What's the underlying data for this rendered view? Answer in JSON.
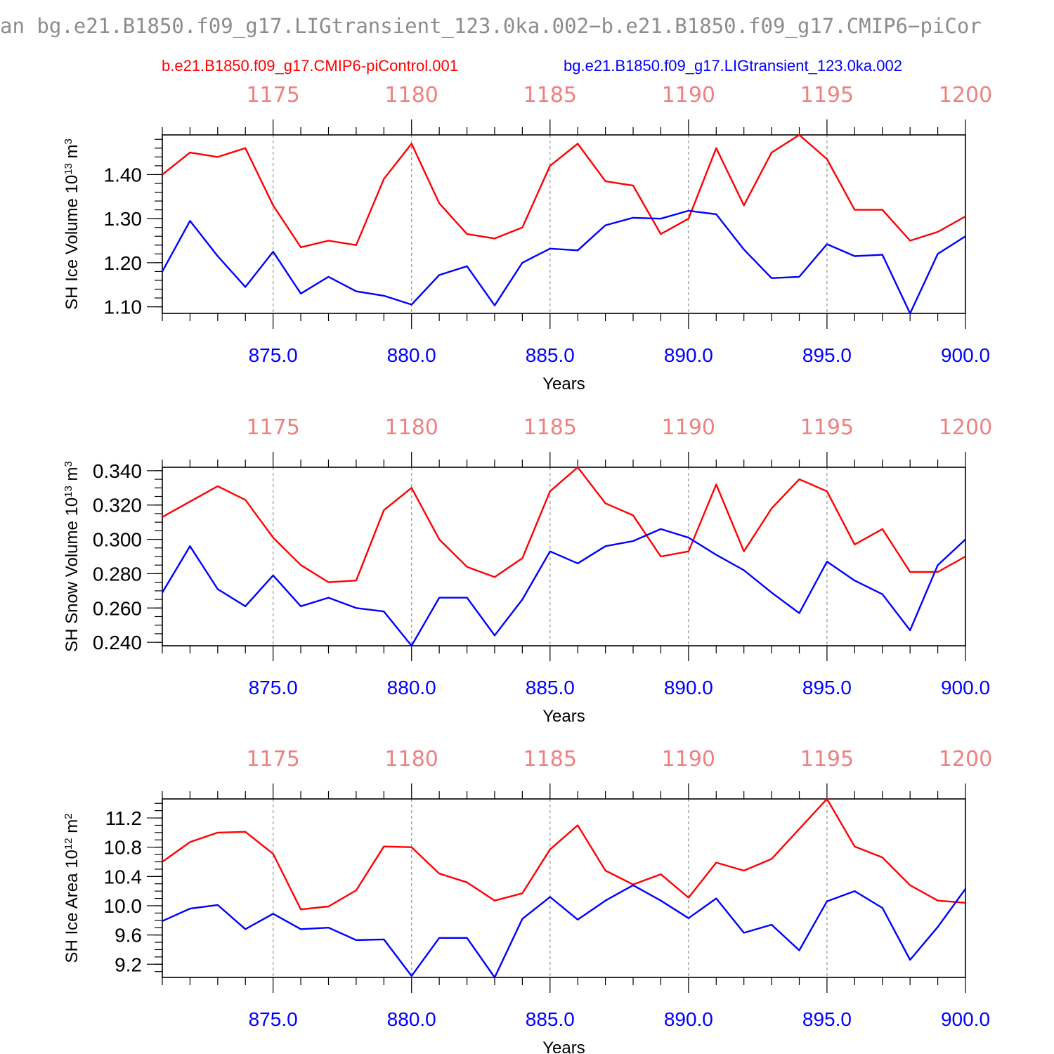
{
  "title": "an bg.e21.B1850.f09_g17.LIGtransient_123.0ka.002−b.e21.B1850.f09_g17.CMIP6−piCor",
  "legend": [
    {
      "label": "b.e21.B1850.f09_g17.CMIP6-piControl.001",
      "color": "#ff0000"
    },
    {
      "label": "bg.e21.B1850.f09_g17.LIGtransient_123.0ka.002",
      "color": "#0000ff"
    }
  ],
  "colors": {
    "control": "#ff0000",
    "transient": "#0000ff",
    "top_axis": "#f08080",
    "bottom_axis": "#0000ff"
  },
  "chart_data": [
    {
      "type": "line",
      "ylabel": {
        "main": "SH Ice Volume 10",
        "exp": "13",
        "unit": " m",
        "unit_exp": "3"
      },
      "xlabel": "Years",
      "xlim": [
        871,
        900
      ],
      "ylim": [
        1.085,
        1.49
      ],
      "yticks": [
        1.1,
        1.2,
        1.3,
        1.4
      ],
      "ytick_labels": [
        "1.10",
        "1.20",
        "1.30",
        "1.40"
      ],
      "yminor": 0.02,
      "xticks": [
        875,
        880,
        885,
        890,
        895,
        900
      ],
      "xtick_labels": [
        "875.0",
        "880.0",
        "885.0",
        "890.0",
        "895.0",
        "900.0"
      ],
      "top_xtick_labels": [
        "1175",
        "1180",
        "1185",
        "1190",
        "1195",
        "1200"
      ],
      "grid": "vertical dashed at major x ticks",
      "x": [
        871,
        872,
        873,
        874,
        875,
        876,
        877,
        878,
        879,
        880,
        881,
        882,
        883,
        884,
        885,
        886,
        887,
        888,
        889,
        890,
        891,
        892,
        893,
        894,
        895,
        896,
        897,
        898,
        899,
        900
      ],
      "series": [
        {
          "name": "b.e21.B1850.f09_g17.CMIP6-piControl.001",
          "color": "#ff0000",
          "values": [
            1.4,
            1.45,
            1.44,
            1.46,
            1.33,
            1.235,
            1.25,
            1.24,
            1.39,
            1.47,
            1.335,
            1.265,
            1.255,
            1.28,
            1.42,
            1.47,
            1.385,
            1.375,
            1.265,
            1.3,
            1.46,
            1.33,
            1.45,
            1.49,
            1.435,
            1.32,
            1.32,
            1.25,
            1.27,
            1.305
          ]
        },
        {
          "name": "bg.e21.B1850.f09_g17.LIGtransient_123.0ka.002",
          "color": "#0000ff",
          "values": [
            1.18,
            1.295,
            1.215,
            1.145,
            1.225,
            1.13,
            1.168,
            1.135,
            1.125,
            1.105,
            1.172,
            1.192,
            1.103,
            1.2,
            1.232,
            1.228,
            1.285,
            1.302,
            1.3,
            1.318,
            1.31,
            1.23,
            1.165,
            1.168,
            1.242,
            1.215,
            1.218,
            1.085,
            1.22,
            1.26
          ]
        }
      ]
    },
    {
      "type": "line",
      "ylabel": {
        "main": "SH Snow Volume 10",
        "exp": "13",
        "unit": " m",
        "unit_exp": "3"
      },
      "xlabel": "Years",
      "xlim": [
        871,
        900
      ],
      "ylim": [
        0.238,
        0.342
      ],
      "yticks": [
        0.24,
        0.26,
        0.28,
        0.3,
        0.32,
        0.34
      ],
      "ytick_labels": [
        "0.240",
        "0.260",
        "0.280",
        "0.300",
        "0.320",
        "0.340"
      ],
      "yminor": 0.005,
      "xticks": [
        875,
        880,
        885,
        890,
        895,
        900
      ],
      "xtick_labels": [
        "875.0",
        "880.0",
        "885.0",
        "890.0",
        "895.0",
        "900.0"
      ],
      "top_xtick_labels": [
        "1175",
        "1180",
        "1185",
        "1190",
        "1195",
        "1200"
      ],
      "grid": "vertical dashed at major x ticks",
      "x": [
        871,
        872,
        873,
        874,
        875,
        876,
        877,
        878,
        879,
        880,
        881,
        882,
        883,
        884,
        885,
        886,
        887,
        888,
        889,
        890,
        891,
        892,
        893,
        894,
        895,
        896,
        897,
        898,
        899,
        900
      ],
      "series": [
        {
          "name": "b.e21.B1850.f09_g17.CMIP6-piControl.001",
          "color": "#ff0000",
          "values": [
            0.313,
            0.322,
            0.331,
            0.323,
            0.301,
            0.285,
            0.275,
            0.276,
            0.317,
            0.33,
            0.3,
            0.284,
            0.278,
            0.289,
            0.328,
            0.342,
            0.321,
            0.314,
            0.29,
            0.293,
            0.332,
            0.293,
            0.318,
            0.335,
            0.328,
            0.297,
            0.306,
            0.281,
            0.281,
            0.29
          ]
        },
        {
          "name": "bg.e21.B1850.f09_g17.LIGtransient_123.0ka.002",
          "color": "#0000ff",
          "values": [
            0.269,
            0.296,
            0.271,
            0.261,
            0.279,
            0.261,
            0.266,
            0.26,
            0.258,
            0.238,
            0.266,
            0.266,
            0.244,
            0.265,
            0.293,
            0.286,
            0.296,
            0.299,
            0.306,
            0.301,
            0.291,
            0.282,
            0.269,
            0.257,
            0.287,
            0.276,
            0.268,
            0.247,
            0.285,
            0.3
          ]
        }
      ]
    },
    {
      "type": "line",
      "ylabel": {
        "main": "SH Ice Area 10",
        "exp": "12",
        "unit": " m",
        "unit_exp": "2"
      },
      "xlabel": "Years",
      "xlim": [
        871,
        900
      ],
      "ylim": [
        9.02,
        11.46
      ],
      "yticks": [
        9.2,
        9.6,
        10.0,
        10.4,
        10.8,
        11.2
      ],
      "ytick_labels": [
        "9.2",
        "9.6",
        "10.0",
        "10.4",
        "10.8",
        "11.2"
      ],
      "yminor": 0.1,
      "xticks": [
        875,
        880,
        885,
        890,
        895,
        900
      ],
      "xtick_labels": [
        "875.0",
        "880.0",
        "885.0",
        "890.0",
        "895.0",
        "900.0"
      ],
      "top_xtick_labels": [
        "1175",
        "1180",
        "1185",
        "1190",
        "1195",
        "1200"
      ],
      "grid": "vertical dashed at major x ticks",
      "x": [
        871,
        872,
        873,
        874,
        875,
        876,
        877,
        878,
        879,
        880,
        881,
        882,
        883,
        884,
        885,
        886,
        887,
        888,
        889,
        890,
        891,
        892,
        893,
        894,
        895,
        896,
        897,
        898,
        899,
        900
      ],
      "series": [
        {
          "name": "b.e21.B1850.f09_g17.CMIP6-piControl.001",
          "color": "#ff0000",
          "values": [
            10.6,
            10.87,
            11.0,
            11.01,
            10.71,
            9.95,
            9.99,
            10.21,
            10.81,
            10.8,
            10.44,
            10.32,
            10.07,
            10.17,
            10.77,
            11.1,
            10.48,
            10.29,
            10.43,
            10.11,
            10.59,
            10.48,
            10.64,
            11.05,
            11.46,
            10.81,
            10.66,
            10.28,
            10.07,
            10.04
          ]
        },
        {
          "name": "bg.e21.B1850.f09_g17.LIGtransient_123.0ka.002",
          "color": "#0000ff",
          "values": [
            9.79,
            9.96,
            10.01,
            9.68,
            9.89,
            9.68,
            9.7,
            9.53,
            9.54,
            9.04,
            9.56,
            9.56,
            9.02,
            9.82,
            10.12,
            9.81,
            10.07,
            10.28,
            10.07,
            9.83,
            10.1,
            9.63,
            9.74,
            9.39,
            10.06,
            10.2,
            9.97,
            9.26,
            9.71,
            10.23
          ]
        }
      ]
    }
  ]
}
